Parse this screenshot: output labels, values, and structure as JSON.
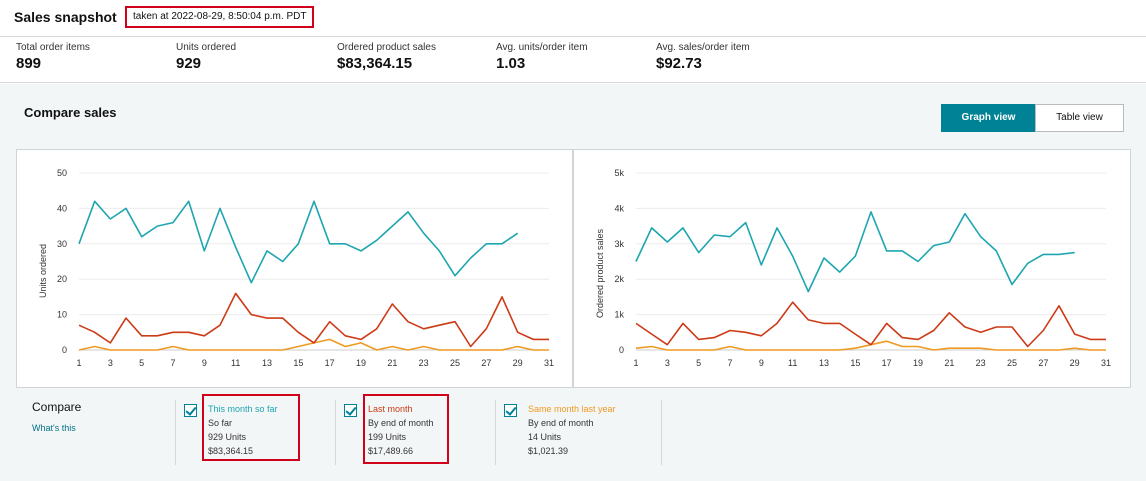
{
  "header": {
    "title": "Sales snapshot",
    "taken": "taken at 2022-08-29, 8:50:04 p.m. PDT"
  },
  "metrics": [
    {
      "label": "Total order items",
      "value": "899"
    },
    {
      "label": "Units ordered",
      "value": "929"
    },
    {
      "label": "Ordered product sales",
      "value": "$83,364.15"
    },
    {
      "label": "Avg. units/order item",
      "value": "1.03"
    },
    {
      "label": "Avg. sales/order item",
      "value": "$92.73"
    }
  ],
  "compare": {
    "title": "Compare sales",
    "graph_view_label": "Graph view",
    "table_view_label": "Table view",
    "compare_label": "Compare",
    "whats_this": "What's this"
  },
  "legend": [
    {
      "name": "This month so far",
      "line1": "So far",
      "line2": "929 Units",
      "line3": "$83,364.15",
      "color": "#1ea6b0",
      "checked": true
    },
    {
      "name": "Last month",
      "line1": "By end of month",
      "line2": "199 Units",
      "line3": "$17,489.66",
      "color": "#cc3a16",
      "checked": true
    },
    {
      "name": "Same month last year",
      "line1": "By end of month",
      "line2": "14 Units",
      "line3": "$1,021.39",
      "color": "#f09a22",
      "checked": true
    }
  ],
  "chart_data": [
    {
      "type": "line",
      "ylabel": "Units ordered",
      "ylim": [
        0,
        50
      ],
      "yticks": [
        "0",
        "10",
        "20",
        "30",
        "40",
        "50"
      ],
      "ytick_values": [
        0,
        10,
        20,
        30,
        40,
        50
      ],
      "xticks": [
        "1",
        "3",
        "5",
        "7",
        "9",
        "11",
        "13",
        "15",
        "17",
        "19",
        "21",
        "23",
        "25",
        "27",
        "29",
        "31"
      ],
      "x": [
        1,
        2,
        3,
        4,
        5,
        6,
        7,
        8,
        9,
        10,
        11,
        12,
        13,
        14,
        15,
        16,
        17,
        18,
        19,
        20,
        21,
        22,
        23,
        24,
        25,
        26,
        27,
        28,
        29,
        30,
        31
      ],
      "series": [
        {
          "name": "This month so far",
          "color": "#1ea6b0",
          "values": [
            30,
            42,
            37,
            40,
            32,
            35,
            36,
            42,
            28,
            40,
            29,
            19,
            28,
            25,
            30,
            42,
            30,
            30,
            28,
            31,
            35,
            39,
            33,
            28,
            21,
            26,
            30,
            30,
            33,
            null,
            null
          ]
        },
        {
          "name": "Last month",
          "color": "#cc3a16",
          "values": [
            7,
            5,
            2,
            9,
            4,
            4,
            5,
            5,
            4,
            7,
            16,
            10,
            9,
            9,
            5,
            2,
            8,
            4,
            3,
            6,
            13,
            8,
            6,
            7,
            8,
            1,
            6,
            15,
            5,
            3,
            3
          ]
        },
        {
          "name": "Same month last year",
          "color": "#f09a22",
          "values": [
            0,
            1,
            0,
            0,
            0,
            0,
            1,
            0,
            0,
            0,
            0,
            0,
            0,
            0,
            1,
            2,
            3,
            1,
            2,
            0,
            1,
            0,
            1,
            0,
            0,
            0,
            0,
            0,
            1,
            0,
            0
          ]
        }
      ]
    },
    {
      "type": "line",
      "ylabel": "Ordered product sales",
      "ylim": [
        0,
        5000
      ],
      "yticks": [
        "0",
        "1k",
        "2k",
        "3k",
        "4k",
        "5k"
      ],
      "ytick_values": [
        0,
        1000,
        2000,
        3000,
        4000,
        5000
      ],
      "xticks": [
        "1",
        "3",
        "5",
        "7",
        "9",
        "11",
        "13",
        "15",
        "17",
        "19",
        "21",
        "23",
        "25",
        "27",
        "29",
        "31"
      ],
      "x": [
        1,
        2,
        3,
        4,
        5,
        6,
        7,
        8,
        9,
        10,
        11,
        12,
        13,
        14,
        15,
        16,
        17,
        18,
        19,
        20,
        21,
        22,
        23,
        24,
        25,
        26,
        27,
        28,
        29,
        30,
        31
      ],
      "series": [
        {
          "name": "This month so far",
          "color": "#1ea6b0",
          "values": [
            2500,
            3450,
            3050,
            3450,
            2750,
            3250,
            3200,
            3600,
            2400,
            3450,
            2650,
            1650,
            2600,
            2200,
            2650,
            3900,
            2800,
            2800,
            2500,
            2950,
            3050,
            3850,
            3200,
            2800,
            1850,
            2450,
            2700,
            2700,
            2750,
            null,
            null
          ]
        },
        {
          "name": "Last month",
          "color": "#cc3a16",
          "values": [
            750,
            450,
            150,
            750,
            300,
            350,
            550,
            500,
            400,
            750,
            1350,
            850,
            750,
            750,
            450,
            150,
            750,
            350,
            300,
            550,
            1050,
            650,
            500,
            650,
            650,
            100,
            550,
            1250,
            450,
            300,
            300
          ]
        },
        {
          "name": "Same month last year",
          "color": "#f09a22",
          "values": [
            50,
            100,
            0,
            0,
            0,
            0,
            100,
            0,
            0,
            0,
            0,
            0,
            0,
            0,
            50,
            150,
            250,
            100,
            100,
            0,
            50,
            50,
            50,
            0,
            0,
            0,
            0,
            0,
            50,
            0,
            0
          ]
        }
      ]
    }
  ]
}
